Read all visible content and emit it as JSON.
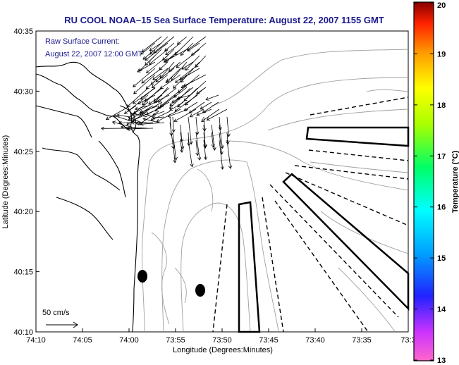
{
  "title": "RU COOL  NOAA–15  Sea Surface Temperature:  August 22, 2007 1155 GMT",
  "current_label_line1": "Raw Surface Current:",
  "current_label_line2": "August 22, 2007 12:00 GMT",
  "scale_label": "50 cm/s",
  "xlabel": "Longitude (Degrees:Minutes)",
  "ylabel": "Latitude (Degrees:Minutes)",
  "x_ticks": [
    "74:10",
    "74:05",
    "74:00",
    "73:55",
    "73:50",
    "73:45",
    "73:40",
    "73:35",
    "73:3"
  ],
  "y_ticks": [
    "40:35",
    "40:30",
    "40:25",
    "40:20",
    "40:15",
    "40:10"
  ],
  "colorbar": {
    "label": "Temperature (°C)",
    "ticks": [
      "20",
      "19",
      "18",
      "17",
      "16",
      "15",
      "14",
      "13"
    ],
    "range": [
      13,
      20
    ]
  },
  "colors": {
    "title": "#1a1a8c",
    "land_line": "#000000",
    "contour": "#a0a0a0"
  }
}
